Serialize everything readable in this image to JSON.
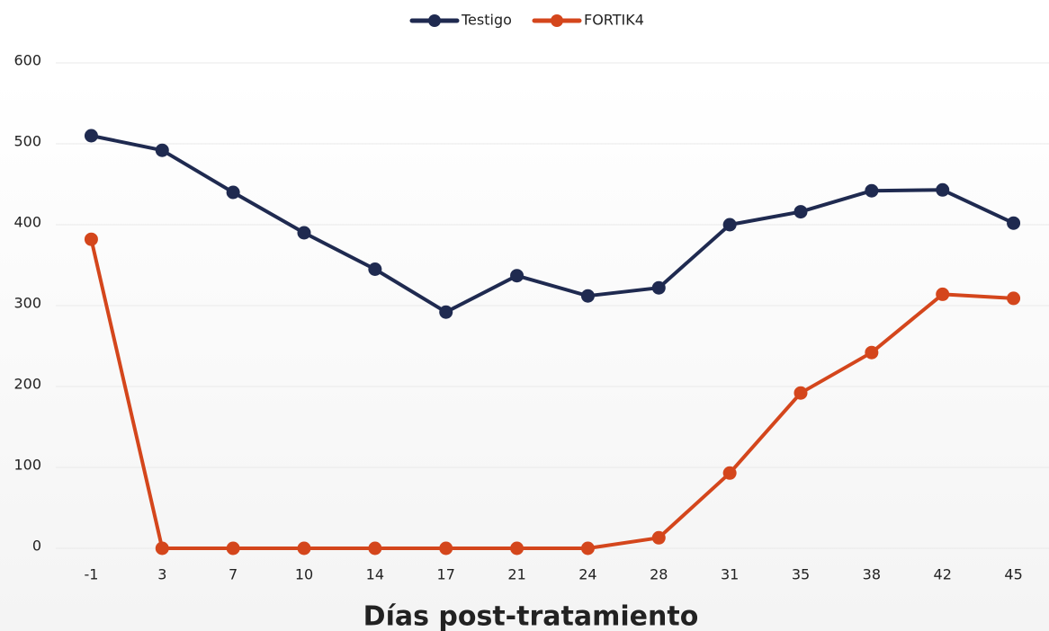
{
  "chart_data": {
    "type": "line",
    "x_label": "Días post-tratamiento",
    "categories": [
      "-1",
      "3",
      "7",
      "10",
      "14",
      "17",
      "21",
      "24",
      "28",
      "31",
      "35",
      "38",
      "42",
      "45"
    ],
    "series": [
      {
        "name": "Testigo",
        "color": "#1f2a50",
        "values": [
          510,
          492,
          440,
          390,
          345,
          292,
          337,
          312,
          322,
          400,
          416,
          442,
          443,
          402
        ]
      },
      {
        "name": "FORTIK4",
        "color": "#d4461c",
        "values": [
          382,
          0,
          0,
          0,
          0,
          0,
          0,
          0,
          13,
          93,
          192,
          242,
          314,
          309
        ]
      }
    ],
    "ylim": [
      0,
      600
    ],
    "yticks": [
      0,
      100,
      200,
      300,
      400,
      500,
      600
    ],
    "grid": true,
    "legend": "top"
  }
}
